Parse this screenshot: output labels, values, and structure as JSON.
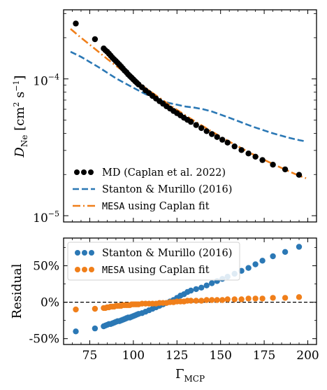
{
  "chart_data": [
    {
      "type": "scatter",
      "panel": "top",
      "ylabel": "D_Ne [cm² s⁻¹]",
      "ylabel_parts": {
        "base": "D",
        "sub": "Ne",
        "units_open": " [cm",
        "sup2": "2",
        "units_mid": " s",
        "supneg1": "−1",
        "units_close": "]"
      },
      "yscale": "log",
      "ylim": [
        9e-06,
        0.00032
      ],
      "xlim": [
        60,
        205
      ],
      "yticks": [
        {
          "value": 0.0001,
          "base": "10",
          "exp": "−4"
        },
        {
          "value": 1e-05,
          "base": "10",
          "exp": "−5"
        }
      ],
      "legend_position": "lower-left",
      "series": [
        {
          "name": "MD (Caplan et al. 2022)",
          "kind": "points",
          "color": "#000000",
          "x": [
            67,
            78,
            83,
            84,
            85,
            86,
            87,
            88,
            89,
            90,
            91,
            92,
            93,
            94,
            95,
            96,
            97,
            98,
            99,
            100,
            101,
            102,
            103,
            105,
            107,
            109,
            111,
            113,
            115,
            117,
            119,
            121,
            123,
            125,
            127,
            129,
            131,
            133,
            136,
            139,
            142,
            145,
            148,
            151,
            154,
            158,
            162,
            166,
            170,
            174,
            180,
            187,
            195
          ],
          "y": [
            0.000254,
            0.000195,
            0.000167,
            0.000162,
            0.000158,
            0.000153,
            0.000148,
            0.000143,
            0.000139,
            0.000135,
            0.000131,
            0.000127,
            0.000123,
            0.000119,
            0.000115,
            0.000112,
            0.000108,
            0.000105,
            0.000102,
            9.9e-05,
            9.62e-05,
            9.36e-05,
            9.1e-05,
            8.68e-05,
            8.23e-05,
            7.87e-05,
            7.51e-05,
            7.18e-05,
            6.87e-05,
            6.59e-05,
            6.31e-05,
            6.07e-05,
            5.83e-05,
            5.62e-05,
            5.41e-05,
            5.2e-05,
            5.02e-05,
            4.85e-05,
            4.6e-05,
            4.37e-05,
            4.15e-05,
            3.95e-05,
            3.76e-05,
            3.59e-05,
            3.42e-05,
            3.21e-05,
            3.02e-05,
            2.85e-05,
            2.7e-05,
            2.55e-05,
            2.36e-05,
            2.18e-05,
            1.99e-05
          ]
        },
        {
          "name": "Stanton & Murillo (2016)",
          "kind": "dashed-line",
          "color": "#2b78b5",
          "x": [
            64,
            70,
            75,
            80,
            85,
            90,
            95,
            100,
            105,
            110,
            115,
            120,
            125,
            130,
            135,
            140,
            145,
            150,
            155,
            160,
            165,
            170,
            175,
            180,
            185,
            190,
            195,
            199
          ],
          "y": [
            0.000158,
            0.000145,
            0.000133,
            0.000122,
            0.000111,
            0.000101,
            9.32e-05,
            8.62e-05,
            7.97e-05,
            7.42e-05,
            7e-05,
            6.68e-05,
            6.48e-05,
            6.28e-05,
            6.17e-05,
            6e-05,
            5.78e-05,
            5.48e-05,
            5.2e-05,
            4.92e-05,
            4.65e-05,
            4.41e-05,
            4.2e-05,
            4e-05,
            3.84e-05,
            3.69e-05,
            3.57e-05,
            3.49e-05
          ]
        },
        {
          "name": "MESA using Caplan fit",
          "name_parts": {
            "mono": "MESA",
            "rest": " using Caplan fit"
          },
          "kind": "dashdot-line",
          "color": "#f07f1a",
          "x": [
            64,
            70,
            75,
            80,
            85,
            90,
            95,
            100,
            105,
            110,
            115,
            120,
            125,
            130,
            135,
            140,
            145,
            150,
            155,
            160,
            165,
            170,
            175,
            180,
            185,
            190,
            195,
            199
          ],
          "y": [
            0.000232,
            0.0002,
            0.000178,
            0.000158,
            0.00014,
            0.000125,
            0.000112,
            9.97e-05,
            8.96e-05,
            8.06e-05,
            7.27e-05,
            6.55e-05,
            5.94e-05,
            5.4e-05,
            4.92e-05,
            4.5e-05,
            4.12e-05,
            3.78e-05,
            3.48e-05,
            3.21e-05,
            2.97e-05,
            2.75e-05,
            2.56e-05,
            2.39e-05,
            2.23e-05,
            2.09e-05,
            1.96e-05,
            1.88e-05
          ]
        }
      ]
    },
    {
      "type": "scatter",
      "panel": "bottom",
      "xlabel": "Γ_MCP",
      "xlabel_parts": {
        "base": "Γ",
        "sub": "MCP"
      },
      "ylabel": "Residual",
      "xlim": [
        60,
        205
      ],
      "ylim": [
        -58,
        88
      ],
      "xticks": [
        75,
        100,
        125,
        150,
        175,
        200
      ],
      "yticks": [
        {
          "value": 50,
          "label": "50%"
        },
        {
          "value": 0,
          "label": "0%"
        },
        {
          "value": -50,
          "label": "-50%"
        }
      ],
      "reference_line": {
        "y": 0,
        "style": "dashed",
        "color": "#000000"
      },
      "legend_position": "upper-left",
      "series": [
        {
          "name": "Stanton & Murillo (2016)",
          "color": "#2b78b5",
          "x": [
            67,
            78,
            83,
            84,
            85,
            86,
            87,
            88,
            89,
            90,
            91,
            92,
            93,
            94,
            95,
            96,
            97,
            98,
            99,
            100,
            101,
            102,
            103,
            105,
            107,
            109,
            111,
            113,
            115,
            117,
            119,
            121,
            123,
            125,
            127,
            129,
            131,
            133,
            136,
            139,
            142,
            145,
            148,
            151,
            154,
            158,
            162,
            166,
            170,
            174,
            180,
            187,
            195
          ],
          "y": [
            -40,
            -36,
            -33,
            -32,
            -31,
            -30,
            -30,
            -29,
            -28,
            -27,
            -26,
            -26,
            -25,
            -24,
            -23,
            -22,
            -21,
            -21,
            -20,
            -19,
            -18,
            -17,
            -16,
            -15,
            -13,
            -11,
            -9,
            -7,
            -5,
            -3,
            -1,
            1,
            3,
            6,
            9,
            11,
            14,
            16,
            18,
            20,
            23,
            26,
            29,
            32,
            35,
            39,
            43,
            47,
            52,
            57,
            63,
            69,
            76
          ]
        },
        {
          "name": "MESA using Caplan fit",
          "name_parts": {
            "mono": "MESA",
            "rest": " using Caplan fit"
          },
          "color": "#f07f1a",
          "x": [
            67,
            78,
            83,
            84,
            85,
            86,
            87,
            88,
            89,
            90,
            91,
            92,
            93,
            94,
            95,
            96,
            97,
            98,
            99,
            100,
            101,
            102,
            103,
            105,
            107,
            109,
            111,
            113,
            115,
            117,
            119,
            121,
            123,
            125,
            127,
            129,
            131,
            133,
            136,
            139,
            142,
            145,
            148,
            151,
            154,
            158,
            162,
            166,
            170,
            174,
            180,
            187,
            195
          ],
          "y": [
            -10,
            -9,
            -8,
            -8,
            -7,
            -7,
            -6,
            -6,
            -6,
            -5,
            -5,
            -5,
            -5,
            -4,
            -4,
            -4,
            -4,
            -4,
            -3,
            -3,
            -3,
            -3,
            -3,
            -2,
            -2,
            -2,
            -2,
            -2,
            -1,
            -1,
            -1,
            0,
            0,
            1,
            1,
            1,
            2,
            2,
            2,
            2,
            3,
            3,
            3,
            3,
            4,
            4,
            4,
            5,
            5,
            5,
            6,
            6,
            7
          ]
        }
      ]
    }
  ]
}
